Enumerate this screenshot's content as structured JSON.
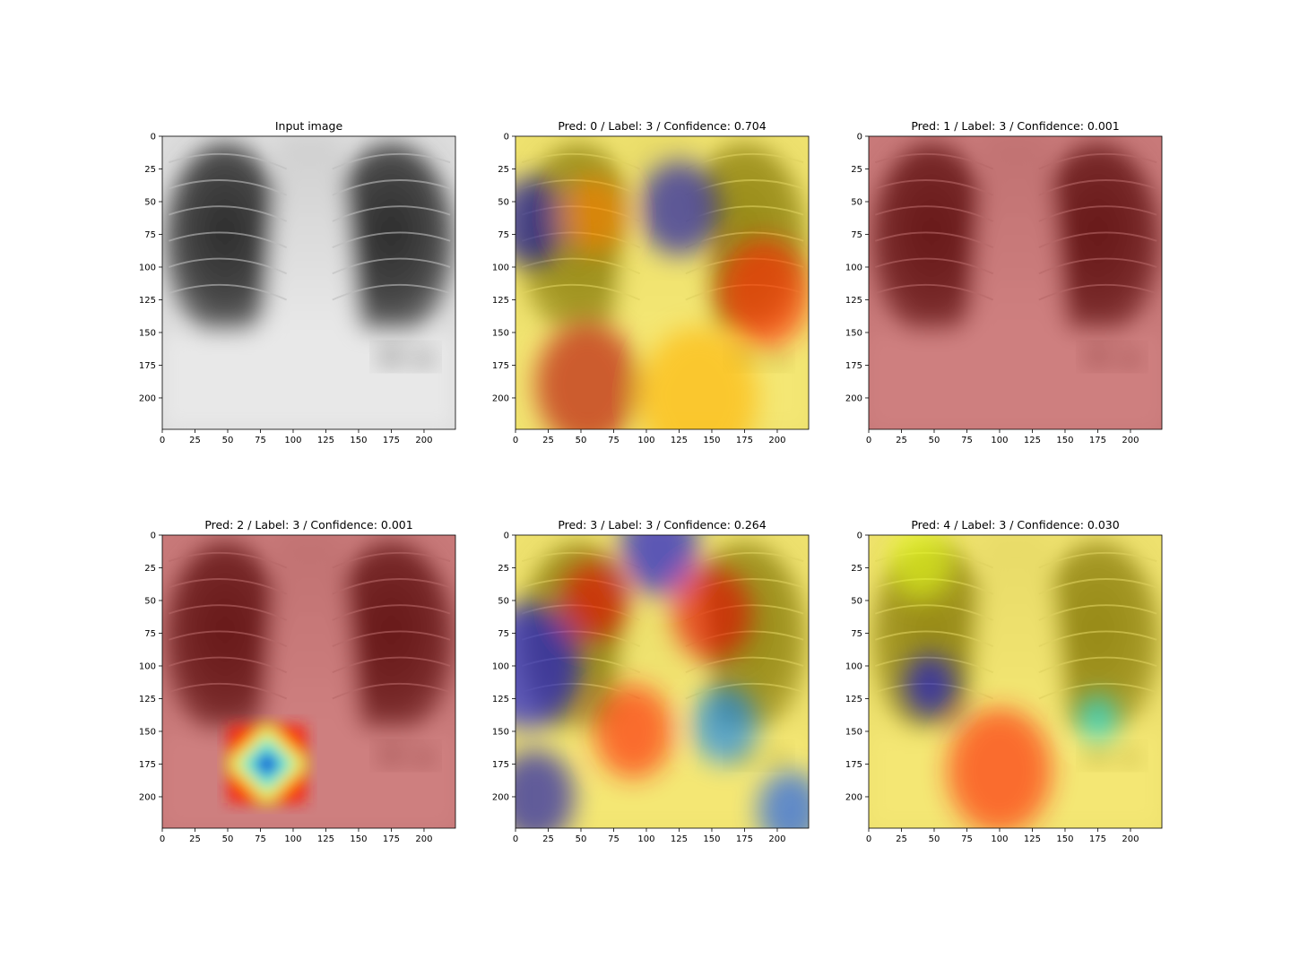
{
  "chart_data": [
    {
      "type": "heatmap",
      "title": "Input image",
      "overlay": "none",
      "xticks": [
        0,
        25,
        50,
        75,
        100,
        125,
        150,
        175,
        200
      ],
      "yticks": [
        0,
        25,
        50,
        75,
        100,
        125,
        150,
        175,
        200
      ],
      "xlim": [
        0,
        224
      ],
      "ylim": [
        224,
        0
      ],
      "hotspots": []
    },
    {
      "type": "heatmap",
      "title": "Pred: 0 / Label: 3 / Confidence: 0.704",
      "overlay": "jet",
      "xticks": [
        0,
        25,
        50,
        75,
        100,
        125,
        150,
        175,
        200
      ],
      "yticks": [
        0,
        25,
        50,
        75,
        100,
        125,
        150,
        175,
        200
      ],
      "xlim": [
        0,
        224
      ],
      "ylim": [
        224,
        0
      ],
      "hotspots": [
        {
          "x": 12,
          "y": 65,
          "value": 0.05,
          "spread": 28
        },
        {
          "x": 125,
          "y": 55,
          "value": 0.05,
          "spread": 30
        },
        {
          "x": 55,
          "y": 190,
          "value": 0.95,
          "spread": 40
        },
        {
          "x": 190,
          "y": 120,
          "value": 0.85,
          "spread": 35
        },
        {
          "x": 140,
          "y": 200,
          "value": 0.7,
          "spread": 45
        },
        {
          "x": 60,
          "y": 60,
          "value": 0.75,
          "spread": 25
        }
      ]
    },
    {
      "type": "heatmap",
      "title": "Pred: 1 / Label: 3 / Confidence: 0.001",
      "overlay": "red-uniform",
      "xticks": [
        0,
        25,
        50,
        75,
        100,
        125,
        150,
        175,
        200
      ],
      "yticks": [
        0,
        25,
        50,
        75,
        100,
        125,
        150,
        175,
        200
      ],
      "xlim": [
        0,
        224
      ],
      "ylim": [
        224,
        0
      ],
      "hotspots": []
    },
    {
      "type": "heatmap",
      "title": "Pred: 2 / Label: 3 / Confidence: 0.001",
      "overlay": "red-uniform",
      "xticks": [
        0,
        25,
        50,
        75,
        100,
        125,
        150,
        175,
        200
      ],
      "yticks": [
        0,
        25,
        50,
        75,
        100,
        125,
        150,
        175,
        200
      ],
      "xlim": [
        0,
        224
      ],
      "ylim": [
        224,
        0
      ],
      "hotspots": [
        {
          "x": 80,
          "y": 175,
          "value": 0.1,
          "spread": 30
        }
      ]
    },
    {
      "type": "heatmap",
      "title": "Pred: 3 / Label: 3 / Confidence: 0.264",
      "overlay": "jet",
      "xticks": [
        0,
        25,
        50,
        75,
        100,
        125,
        150,
        175,
        200
      ],
      "yticks": [
        0,
        25,
        50,
        75,
        100,
        125,
        150,
        175,
        200
      ],
      "xlim": [
        0,
        224
      ],
      "ylim": [
        224,
        0
      ],
      "hotspots": [
        {
          "x": 10,
          "y": 100,
          "value": 0.1,
          "spread": 40
        },
        {
          "x": 110,
          "y": 10,
          "value": 0.1,
          "spread": 30
        },
        {
          "x": 160,
          "y": 145,
          "value": 0.25,
          "spread": 25
        },
        {
          "x": 15,
          "y": 200,
          "value": 0.05,
          "spread": 30
        },
        {
          "x": 210,
          "y": 210,
          "value": 0.2,
          "spread": 25
        },
        {
          "x": 60,
          "y": 50,
          "value": 0.9,
          "spread": 25
        },
        {
          "x": 150,
          "y": 60,
          "value": 0.9,
          "spread": 30
        },
        {
          "x": 90,
          "y": 150,
          "value": 0.85,
          "spread": 30
        }
      ]
    },
    {
      "type": "heatmap",
      "title": "Pred: 4 / Label: 3 / Confidence: 0.030",
      "overlay": "jet",
      "xticks": [
        0,
        25,
        50,
        75,
        100,
        125,
        150,
        175,
        200
      ],
      "yticks": [
        0,
        25,
        50,
        75,
        100,
        125,
        150,
        175,
        200
      ],
      "xlim": [
        0,
        224
      ],
      "ylim": [
        224,
        0
      ],
      "hotspots": [
        {
          "x": 47,
          "y": 115,
          "value": 0.1,
          "spread": 20
        },
        {
          "x": 175,
          "y": 140,
          "value": 0.35,
          "spread": 15
        },
        {
          "x": 40,
          "y": 20,
          "value": 0.6,
          "spread": 25
        },
        {
          "x": 100,
          "y": 180,
          "value": 0.85,
          "spread": 40
        }
      ]
    }
  ]
}
